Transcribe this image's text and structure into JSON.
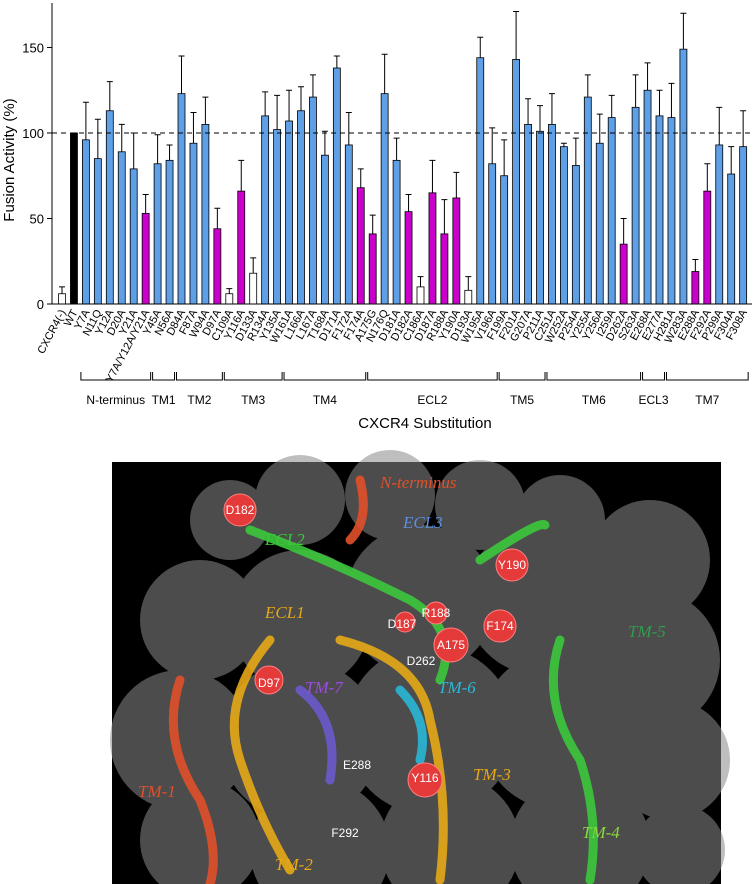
{
  "chart_data": {
    "type": "bar",
    "ylabel": "Fusion Activity (%)",
    "xlabel": "CXCR4 Substitution",
    "categories": [
      "CXCR4(-)",
      "WT",
      "Y7A",
      "N11Q",
      "Y12A",
      "D20A",
      "Y21A",
      "Y7A/Y12A/Y21A",
      "Y45A",
      "N56A",
      "D84A",
      "F87A",
      "W94A",
      "D97A",
      "C109A",
      "Y116A",
      "D133A",
      "R134A",
      "Y135A",
      "W161A",
      "L166A",
      "L167A",
      "T168A",
      "D171A",
      "F172A",
      "F174A",
      "A175G",
      "N176Q",
      "D181A",
      "D182A",
      "C186A",
      "D187A",
      "R188A",
      "Y190A",
      "D193A",
      "W195A",
      "V196A",
      "F199A",
      "F201A",
      "G207A",
      "P211A",
      "C251A",
      "W252A",
      "P254A",
      "Y255A",
      "Y256A",
      "I259A",
      "D262A",
      "S263A",
      "E268A",
      "E277A",
      "H281A",
      "W283A",
      "E288A",
      "F292A",
      "P299A",
      "F304A",
      "F308A"
    ],
    "values": [
      6,
      100,
      96,
      85,
      113,
      89,
      79,
      53,
      82,
      84,
      123,
      94,
      105,
      44,
      6,
      66,
      18,
      110,
      102,
      107,
      113,
      121,
      87,
      138,
      93,
      68,
      41,
      123,
      84,
      54,
      10,
      65,
      41,
      62,
      8,
      144,
      82,
      75,
      143,
      105,
      101,
      105,
      92,
      81,
      121,
      94,
      109,
      35,
      115,
      125,
      110,
      109,
      149,
      19,
      66,
      93,
      76,
      92
    ],
    "errors": [
      4,
      0,
      22,
      23,
      17,
      16,
      21,
      11,
      17,
      9,
      22,
      18,
      16,
      12,
      3,
      18,
      9,
      14,
      20,
      18,
      14,
      13,
      14,
      7,
      19,
      11,
      11,
      23,
      13,
      10,
      6,
      19,
      20,
      15,
      8,
      12,
      21,
      21,
      28,
      15,
      15,
      18,
      2,
      16,
      13,
      17,
      13,
      15,
      19,
      16,
      15,
      20,
      21,
      7,
      16,
      22,
      16,
      21
    ],
    "colors": [
      "#ffffff",
      "#000000",
      "#5e9fe6",
      "#5e9fe6",
      "#5e9fe6",
      "#5e9fe6",
      "#5e9fe6",
      "#cc00cc",
      "#5e9fe6",
      "#5e9fe6",
      "#5e9fe6",
      "#5e9fe6",
      "#5e9fe6",
      "#cc00cc",
      "#ffffff",
      "#cc00cc",
      "#ffffff",
      "#5e9fe6",
      "#5e9fe6",
      "#5e9fe6",
      "#5e9fe6",
      "#5e9fe6",
      "#5e9fe6",
      "#5e9fe6",
      "#5e9fe6",
      "#cc00cc",
      "#cc00cc",
      "#5e9fe6",
      "#5e9fe6",
      "#cc00cc",
      "#ffffff",
      "#cc00cc",
      "#cc00cc",
      "#cc00cc",
      "#ffffff",
      "#5e9fe6",
      "#5e9fe6",
      "#5e9fe6",
      "#5e9fe6",
      "#5e9fe6",
      "#5e9fe6",
      "#5e9fe6",
      "#5e9fe6",
      "#5e9fe6",
      "#5e9fe6",
      "#5e9fe6",
      "#5e9fe6",
      "#cc00cc",
      "#5e9fe6",
      "#5e9fe6",
      "#5e9fe6",
      "#5e9fe6",
      "#5e9fe6",
      "#cc00cc",
      "#cc00cc",
      "#5e9fe6",
      "#5e9fe6",
      "#5e9fe6"
    ],
    "ylim": [
      0,
      176
    ],
    "yticks": [
      0,
      50,
      100,
      150
    ],
    "reference_line": 100,
    "groups": [
      {
        "label": "N-terminus",
        "from": "Y7A",
        "to": "Y7A/Y12A/Y21A"
      },
      {
        "label": "TM1",
        "from": "Y45A",
        "to": "N56A"
      },
      {
        "label": "TM2",
        "from": "D84A",
        "to": "D97A"
      },
      {
        "label": "TM3",
        "from": "C109A",
        "to": "Y135A"
      },
      {
        "label": "TM4",
        "from": "W161A",
        "to": "F174A"
      },
      {
        "label": "ECL2",
        "from": "A175G",
        "to": "V196A"
      },
      {
        "label": "TM5",
        "from": "F199A",
        "to": "P211A"
      },
      {
        "label": "TM6",
        "from": "C251A",
        "to": "S263A"
      },
      {
        "label": "ECL3",
        "from": "E268A",
        "to": "E277A"
      },
      {
        "label": "TM7",
        "from": "H281A",
        "to": "F308A"
      }
    ]
  },
  "structure": {
    "region_labels": [
      "N-terminus",
      "ECL3",
      "ECL2",
      "ECL1",
      "TM-5",
      "TM-7",
      "TM-6",
      "TM-1",
      "TM-3",
      "TM-4",
      "TM-2"
    ],
    "residue_labels": [
      "D182",
      "Y190",
      "R188",
      "F174",
      "D187",
      "A175",
      "D262",
      "D97",
      "E288",
      "Y116",
      "F292"
    ]
  }
}
